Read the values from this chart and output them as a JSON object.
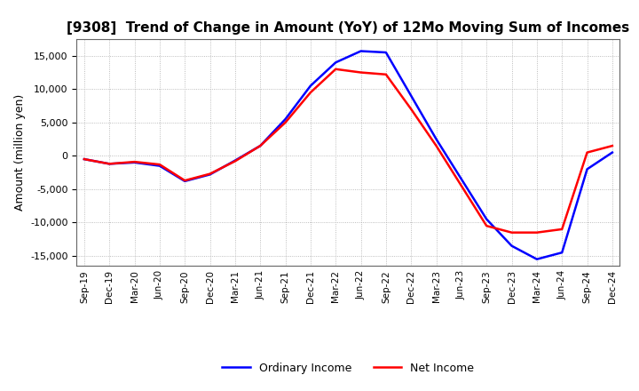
{
  "title": "[9308]  Trend of Change in Amount (YoY) of 12Mo Moving Sum of Incomes",
  "ylabel": "Amount (million yen)",
  "background_color": "#ffffff",
  "grid_color": "#aaaaaa",
  "line_blue": "#0000ff",
  "line_red": "#ff0000",
  "ylim": [
    -16500,
    17500
  ],
  "yticks": [
    -15000,
    -10000,
    -5000,
    0,
    5000,
    10000,
    15000
  ],
  "legend_labels": [
    "Ordinary Income",
    "Net Income"
  ],
  "x_labels": [
    "Sep-19",
    "Dec-19",
    "Mar-20",
    "Jun-20",
    "Sep-20",
    "Dec-20",
    "Mar-21",
    "Jun-21",
    "Sep-21",
    "Dec-21",
    "Mar-22",
    "Jun-22",
    "Sep-22",
    "Dec-22",
    "Mar-23",
    "Jun-23",
    "Sep-23",
    "Dec-23",
    "Mar-24",
    "Jun-24",
    "Sep-24",
    "Dec-24"
  ],
  "ordinary_income": [
    -500,
    -1200,
    -1000,
    -1500,
    -3800,
    -2800,
    -700,
    1500,
    5500,
    10500,
    14000,
    15700,
    15500,
    9000,
    2500,
    -3500,
    -9500,
    -13500,
    -15500,
    -14500,
    -2000,
    500
  ],
  "net_income": [
    -500,
    -1200,
    -900,
    -1300,
    -3700,
    -2700,
    -800,
    1500,
    5000,
    9500,
    13000,
    12500,
    12200,
    7000,
    1500,
    -4500,
    -10500,
    -11500,
    -11500,
    -11000,
    500,
    1500
  ]
}
